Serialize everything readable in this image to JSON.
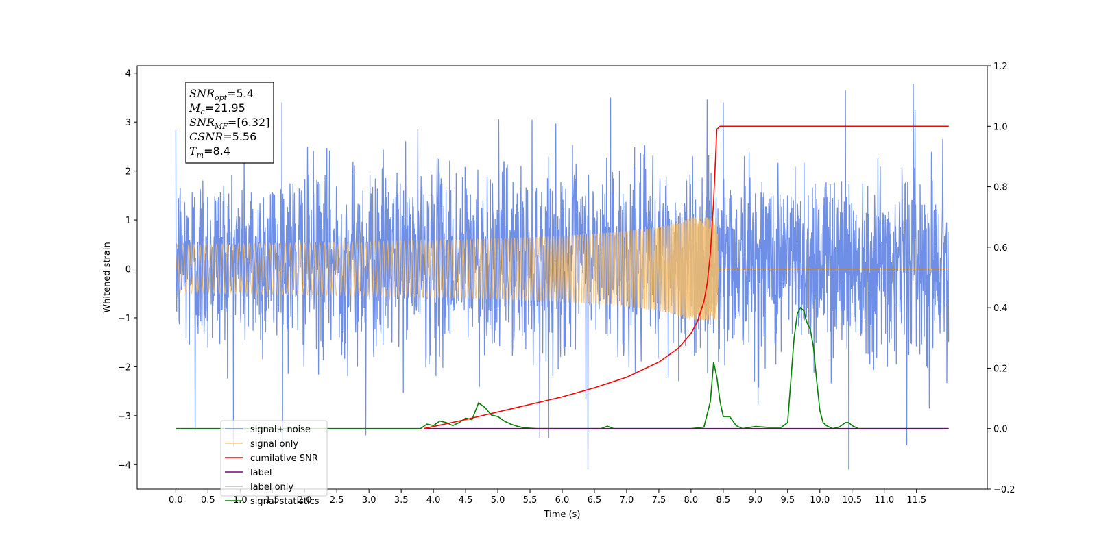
{
  "chart_data": {
    "type": "line",
    "title": "",
    "xlabel": "Time (s)",
    "ylabel": "Whitened strain",
    "y2label": "",
    "xlim": [
      -0.6,
      12.6
    ],
    "ylim": [
      -4.5,
      4.15
    ],
    "y2lim": [
      -0.2,
      1.2
    ],
    "x_ticks": [
      0.0,
      0.5,
      1.0,
      1.5,
      2.0,
      2.5,
      3.0,
      3.5,
      4.0,
      4.5,
      5.0,
      5.5,
      6.0,
      6.5,
      7.0,
      7.5,
      8.0,
      8.5,
      9.0,
      9.5,
      10.0,
      10.5,
      11.0,
      11.5
    ],
    "x_tick_labels": [
      "0.0",
      "0.5",
      "1.0",
      "1.5",
      "2.0",
      "2.5",
      "3.0",
      "3.5",
      "4.0",
      "4.5",
      "5.0",
      "5.5",
      "6.0",
      "6.5",
      "7.0",
      "7.5",
      "8.0",
      "8.5",
      "9.0",
      "9.5",
      "10.0",
      "10.5",
      "11.0",
      "11.5"
    ],
    "y_ticks": [
      -4,
      -3,
      -2,
      -1,
      0,
      1,
      2,
      3,
      4
    ],
    "y_tick_labels": [
      "−4",
      "−3",
      "−2",
      "−1",
      "0",
      "1",
      "2",
      "3",
      "4"
    ],
    "y2_ticks": [
      -0.2,
      0.0,
      0.2,
      0.4,
      0.6,
      0.8,
      1.0,
      1.2
    ],
    "y2_tick_labels": [
      "−0.2",
      "0.0",
      "0.2",
      "0.4",
      "0.6",
      "0.8",
      "1.0",
      "1.2"
    ],
    "grid": false,
    "legend_position": "lower-left",
    "annotation": {
      "lines": [
        {
          "base": "SNR",
          "sub": "opt",
          "rest": "=5.4"
        },
        {
          "base": "M",
          "sub": "c",
          "rest": "=21.95"
        },
        {
          "base": "SNR",
          "sub": "MF",
          "rest": "=[6.32]"
        },
        {
          "base": "CSNR",
          "sub": "",
          "rest": "=5.56"
        },
        {
          "base": "T",
          "sub": "m",
          "rest": "=8.4"
        }
      ]
    },
    "series": [
      {
        "name": "signal+ noise",
        "color": "#6f8fe6",
        "axis": "left",
        "x_range": [
          0.0,
          12.0
        ],
        "typical_band": [
          -1.7,
          2.1
        ],
        "min": -4.1,
        "max": 3.78,
        "peaks": [
          {
            "x": 0.3,
            "y": -3.25
          },
          {
            "x": 1.65,
            "y": 3.4
          },
          {
            "x": 2.95,
            "y": -3.4
          },
          {
            "x": 5.65,
            "y": -3.45
          },
          {
            "x": 6.4,
            "y": -4.1
          },
          {
            "x": 6.75,
            "y": 3.5
          },
          {
            "x": 8.5,
            "y": 3.4
          },
          {
            "x": 10.4,
            "y": 3.65
          },
          {
            "x": 10.45,
            "y": -4.1
          },
          {
            "x": 11.35,
            "y": -3.6
          },
          {
            "x": 11.45,
            "y": 3.78
          }
        ]
      },
      {
        "name": "signal only",
        "color": "#f5bd6a",
        "axis": "left",
        "x_range": [
          0.0,
          12.0
        ],
        "merger_time": 8.4,
        "peak_amplitude": 1.05
      },
      {
        "name": "cumilative SNR",
        "color": "#ff0000",
        "axis": "right",
        "x": [
          3.85,
          4.5,
          5.0,
          5.5,
          6.0,
          6.5,
          7.0,
          7.5,
          7.8,
          8.0,
          8.1,
          8.2,
          8.25,
          8.3,
          8.35,
          8.4,
          8.45,
          12.0
        ],
        "y": [
          0.0,
          0.03,
          0.055,
          0.08,
          0.105,
          0.135,
          0.17,
          0.22,
          0.265,
          0.315,
          0.355,
          0.42,
          0.48,
          0.58,
          0.75,
          0.99,
          1.0,
          1.0
        ]
      },
      {
        "name": "label",
        "color": "#800080",
        "axis": "right",
        "x": [
          3.85,
          12.0
        ],
        "y": [
          0.0,
          0.0
        ]
      },
      {
        "name": "label only",
        "color": "#cccccc",
        "axis": "right",
        "hidden": true,
        "x": [],
        "y": []
      },
      {
        "name": "signal statistics",
        "color": "#008000",
        "axis": "right",
        "x": [
          0.0,
          3.8,
          3.9,
          4.0,
          4.1,
          4.2,
          4.3,
          4.4,
          4.5,
          4.6,
          4.7,
          4.8,
          4.9,
          5.0,
          5.1,
          5.2,
          5.3,
          5.4,
          5.6,
          6.0,
          6.5,
          6.6,
          6.7,
          6.8,
          7.0,
          7.5,
          8.0,
          8.2,
          8.3,
          8.35,
          8.4,
          8.45,
          8.5,
          8.6,
          8.7,
          8.8,
          9.0,
          9.2,
          9.4,
          9.5,
          9.6,
          9.65,
          9.7,
          9.75,
          9.8,
          9.85,
          9.9,
          9.95,
          10.0,
          10.05,
          10.1,
          10.2,
          10.3,
          10.4,
          10.45,
          10.5,
          10.6,
          11.0,
          12.0
        ],
        "y": [
          0.0,
          0.0,
          0.015,
          0.01,
          0.025,
          0.02,
          0.01,
          0.02,
          0.035,
          0.03,
          0.085,
          0.07,
          0.045,
          0.04,
          0.025,
          0.015,
          0.008,
          0.003,
          0.0,
          0.0,
          0.0,
          0.0,
          0.008,
          0.0,
          0.0,
          0.0,
          0.0,
          0.005,
          0.09,
          0.22,
          0.17,
          0.09,
          0.04,
          0.04,
          0.01,
          0.0,
          0.007,
          0.004,
          0.004,
          0.02,
          0.3,
          0.38,
          0.4,
          0.39,
          0.35,
          0.33,
          0.27,
          0.16,
          0.06,
          0.02,
          0.01,
          0.0,
          0.005,
          0.02,
          0.02,
          0.01,
          0.0,
          0.0,
          0.0
        ]
      }
    ]
  }
}
